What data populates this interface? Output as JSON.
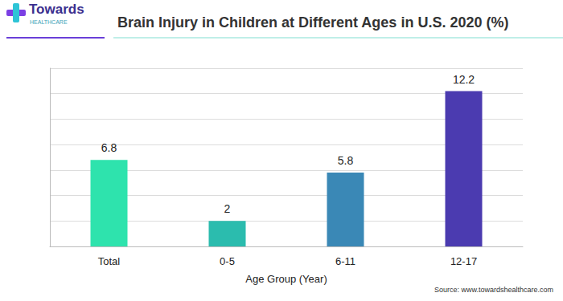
{
  "chart_data": {
    "type": "bar",
    "title": "Brain Injury in Children at Different Ages in U.S. 2020 (%)",
    "x_label": "Age Group (Year)",
    "categories": [
      "Total",
      "0-5",
      "6-11",
      "12-17"
    ],
    "values": [
      6.8,
      2,
      5.8,
      12.2
    ],
    "colors": [
      "#2ee3ad",
      "#2bbcae",
      "#3a88b6",
      "#4b3bb0"
    ],
    "ylim": [
      0,
      14
    ],
    "yticks": [
      0,
      2,
      4,
      6,
      8,
      10,
      12,
      14
    ],
    "grid": true,
    "data_labels": true,
    "tick_labels": "x",
    "source": "Source: www.towardshealthcare.com",
    "logo_text": [
      "Towards",
      "HEALTHCARE"
    ]
  }
}
